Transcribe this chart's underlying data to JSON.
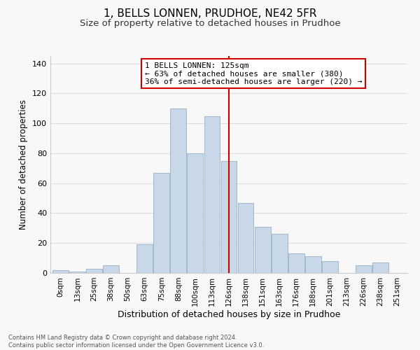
{
  "title": "1, BELLS LONNEN, PRUDHOE, NE42 5FR",
  "subtitle": "Size of property relative to detached houses in Prudhoe",
  "xlabel": "Distribution of detached houses by size in Prudhoe",
  "ylabel": "Number of detached properties",
  "bar_labels": [
    "0sqm",
    "13sqm",
    "25sqm",
    "38sqm",
    "50sqm",
    "63sqm",
    "75sqm",
    "88sqm",
    "100sqm",
    "113sqm",
    "126sqm",
    "138sqm",
    "151sqm",
    "163sqm",
    "176sqm",
    "188sqm",
    "201sqm",
    "213sqm",
    "226sqm",
    "238sqm",
    "251sqm"
  ],
  "bar_values": [
    2,
    1,
    3,
    5,
    0,
    19,
    67,
    110,
    80,
    105,
    75,
    47,
    31,
    26,
    13,
    11,
    8,
    0,
    5,
    7,
    0
  ],
  "bar_color": "#c8d8e8",
  "bar_edge_color": "#a0b8cc",
  "vline_x": 10,
  "vline_color": "#cc0000",
  "annotation_title": "1 BELLS LONNEN: 125sqm",
  "annotation_line1": "← 63% of detached houses are smaller (380)",
  "annotation_line2": "36% of semi-detached houses are larger (220) →",
  "annotation_box_color": "#ffffff",
  "annotation_box_edge_color": "#cc0000",
  "ylim": [
    0,
    145
  ],
  "yticks": [
    0,
    20,
    40,
    60,
    80,
    100,
    120,
    140
  ],
  "footer_line1": "Contains HM Land Registry data © Crown copyright and database right 2024.",
  "footer_line2": "Contains public sector information licensed under the Open Government Licence v3.0.",
  "bg_color": "#f8f8f8",
  "grid_color": "#dddddd",
  "title_fontsize": 11,
  "subtitle_fontsize": 9.5,
  "xlabel_fontsize": 9,
  "ylabel_fontsize": 8.5,
  "tick_fontsize": 7.5,
  "ytick_fontsize": 8,
  "footer_fontsize": 6.0
}
